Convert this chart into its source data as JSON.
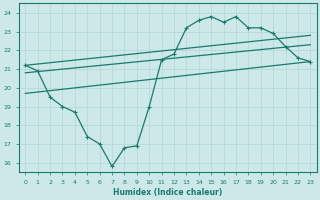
{
  "title": "",
  "xlabel": "Humidex (Indice chaleur)",
  "ylabel": "",
  "bg_color": "#cce8e8",
  "grid_color": "#aacccc",
  "line_color": "#1a7a6e",
  "xlim": [
    -0.5,
    23.5
  ],
  "ylim": [
    15.5,
    24.5
  ],
  "yticks": [
    16,
    17,
    18,
    19,
    20,
    21,
    22,
    23,
    24
  ],
  "xticks": [
    0,
    1,
    2,
    3,
    4,
    5,
    6,
    7,
    8,
    9,
    10,
    11,
    12,
    13,
    14,
    15,
    16,
    17,
    18,
    19,
    20,
    21,
    22,
    23
  ],
  "line1_x": [
    0,
    1,
    2,
    3,
    4,
    5,
    6,
    7,
    8,
    9,
    10,
    11,
    12,
    13,
    14,
    15,
    16,
    17,
    18,
    19,
    20,
    21,
    22,
    23
  ],
  "line1_y": [
    21.2,
    20.9,
    19.5,
    19.0,
    18.7,
    17.4,
    17.0,
    15.8,
    16.8,
    16.9,
    19.0,
    21.5,
    21.8,
    23.2,
    23.6,
    23.8,
    23.5,
    23.8,
    23.2,
    23.2,
    22.9,
    22.2,
    21.6,
    21.4
  ],
  "line2_x": [
    0,
    23
  ],
  "line2_y": [
    21.2,
    22.8
  ],
  "line3_x": [
    0,
    23
  ],
  "line3_y": [
    20.8,
    22.3
  ],
  "line4_x": [
    0,
    23
  ],
  "line4_y": [
    19.7,
    21.4
  ]
}
